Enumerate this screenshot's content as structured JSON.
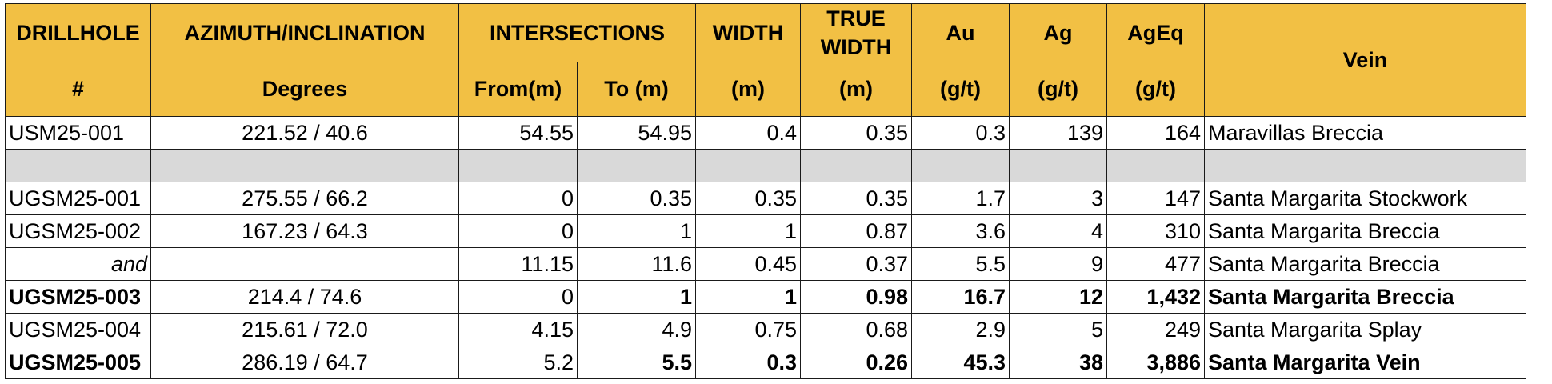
{
  "header": {
    "drillhole": "DRILLHOLE",
    "drillhole_sub": "#",
    "azimuth": "AZIMUTH/INCLINATION",
    "azimuth_sub": "Degrees",
    "intersections": "INTERSECTIONS",
    "from": "From(m)",
    "to": "To (m)",
    "width": "WIDTH",
    "width_unit": "(m)",
    "true_width": "TRUE WIDTH",
    "true_width_unit": "(m)",
    "au": "Au",
    "au_unit": "(g/t)",
    "ag": "Ag",
    "ag_unit": "(g/t)",
    "ageq": "AgEq",
    "ageq_unit": "(g/t)",
    "vein": "Vein"
  },
  "rows": [
    {
      "hole": "USM25-001",
      "az": "221.52 / 40.6",
      "from": "54.55",
      "to": "54.95",
      "width": "0.4",
      "true_width": "0.35",
      "au": "0.3",
      "ag": "139",
      "ageq": "164",
      "vein": "Maravillas Breccia"
    },
    {
      "hole": "UGSM25-001",
      "az": "275.55 / 66.2",
      "from": "0",
      "to": "0.35",
      "width": "0.35",
      "true_width": "0.35",
      "au": "1.7",
      "ag": "3",
      "ageq": "147",
      "vein": "Santa Margarita Stockwork"
    },
    {
      "hole": "UGSM25-002",
      "az": "167.23 / 64.3",
      "from": "0",
      "to": "1",
      "width": "1",
      "true_width": "0.87",
      "au": "3.6",
      "ag": "4",
      "ageq": "310",
      "vein": "Santa Margarita Breccia"
    },
    {
      "hole": "and",
      "az": "",
      "from": "11.15",
      "to": "11.6",
      "width": "0.45",
      "true_width": "0.37",
      "au": "5.5",
      "ag": "9",
      "ageq": "477",
      "vein": "Santa Margarita Breccia"
    },
    {
      "hole": "UGSM25-003",
      "az": "214.4 / 74.6",
      "from": "0",
      "to": "1",
      "width": "1",
      "true_width": "0.98",
      "au": "16.7",
      "ag": "12",
      "ageq": "1,432",
      "vein": "Santa Margarita Breccia"
    },
    {
      "hole": "UGSM25-004",
      "az": "215.61 / 72.0",
      "from": "4.15",
      "to": "4.9",
      "width": "0.75",
      "true_width": "0.68",
      "au": "2.9",
      "ag": "5",
      "ageq": "249",
      "vein": "Santa Margarita Splay"
    },
    {
      "hole": "UGSM25-005",
      "az": "286.19 / 64.7",
      "from": "5.2",
      "to": "5.5",
      "width": "0.3",
      "true_width": "0.26",
      "au": "45.3",
      "ag": "38",
      "ageq": "3,886",
      "vein": "Santa Margarita Vein"
    }
  ]
}
